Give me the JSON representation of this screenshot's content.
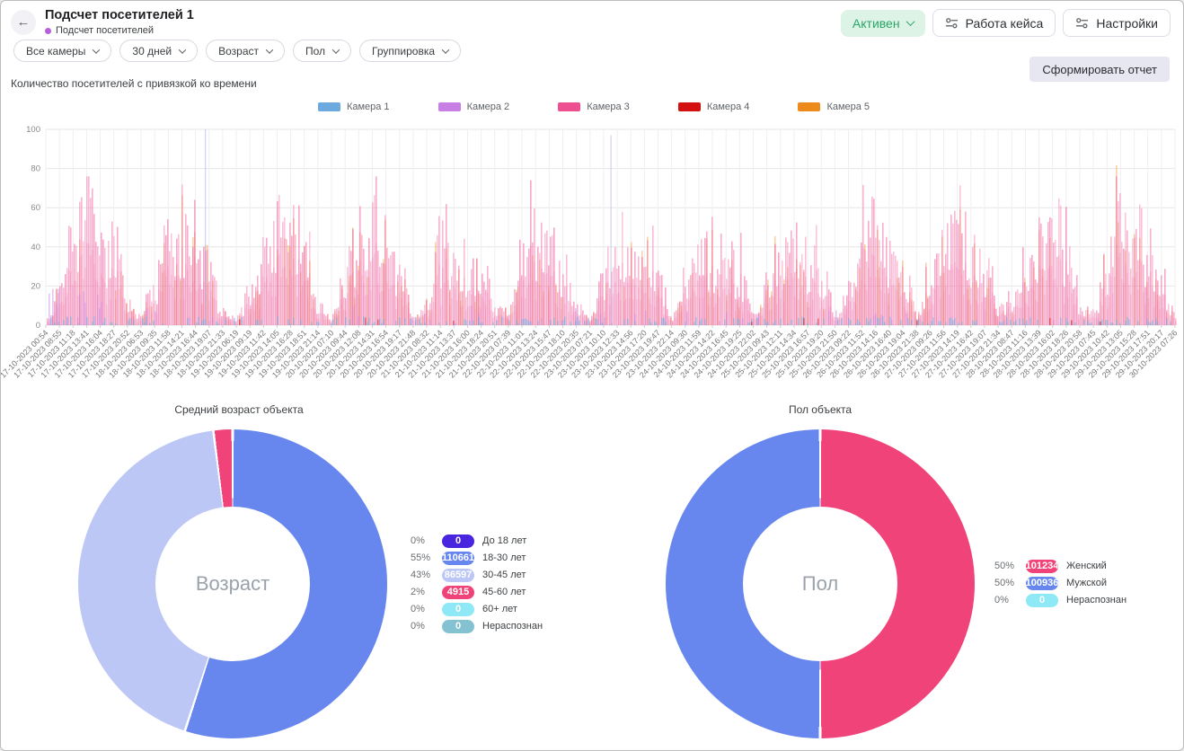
{
  "header": {
    "title": "Подсчет посетителей 1",
    "subtitle": "Подсчет посетителей",
    "status_label": "Активен",
    "case_button_label": "Работа кейса",
    "settings_button_label": "Настройки"
  },
  "filters": {
    "items": [
      {
        "label": "Все камеры"
      },
      {
        "label": "30 дней"
      },
      {
        "label": "Возраст"
      },
      {
        "label": "Пол"
      },
      {
        "label": "Группировка"
      }
    ]
  },
  "report_button_label": "Сформировать отчет",
  "chart_data": [
    {
      "type": "bar",
      "title": "Количество посетителей с привязкой ко времени",
      "ylim": [
        0,
        100
      ],
      "yticks": [
        0,
        20,
        40,
        60,
        80,
        100
      ],
      "grid": true,
      "legend_position": "top",
      "series": [
        {
          "name": "Камера 1",
          "color": "#6BA9DE"
        },
        {
          "name": "Камера 2",
          "color": "#C77FE3"
        },
        {
          "name": "Камера 3",
          "color": "#ED4F90"
        },
        {
          "name": "Камера 4",
          "color": "#D21010"
        },
        {
          "name": "Камера 5",
          "color": "#EC8A1C"
        }
      ],
      "x": [
        "17-10-2023 00:54",
        "17-10-2023 08:55",
        "17-10-2023 11:18",
        "17-10-2023 13:41",
        "17-10-2023 16:04",
        "17-10-2023 18:27",
        "17-10-2023 20:52",
        "18-10-2023 06:53",
        "18-10-2023 09:35",
        "18-10-2023 11:58",
        "18-10-2023 14:21",
        "18-10-2023 16:44",
        "18-10-2023 19:07",
        "18-10-2023 21:33",
        "19-10-2023 06:19",
        "19-10-2023 09:19",
        "19-10-2023 11:42",
        "19-10-2023 14:05",
        "19-10-2023 16:28",
        "19-10-2023 18:51",
        "19-10-2023 21:14",
        "20-10-2023 07:10",
        "20-10-2023 09:44",
        "20-10-2023 12:08",
        "20-10-2023 14:31",
        "20-10-2023 16:54",
        "20-10-2023 19:17",
        "20-10-2023 21:48",
        "21-10-2023 08:32",
        "21-10-2023 11:14",
        "21-10-2023 13:37",
        "21-10-2023 16:00",
        "21-10-2023 18:24",
        "21-10-2023 20:51",
        "22-10-2023 07:39",
        "22-10-2023 11:01",
        "22-10-2023 13:24",
        "22-10-2023 15:47",
        "22-10-2023 18:10",
        "22-10-2023 20:35",
        "23-10-2023 07:21",
        "23-10-2023 10:10",
        "23-10-2023 12:33",
        "23-10-2023 14:56",
        "23-10-2023 17:20",
        "23-10-2023 19:47",
        "23-10-2023 22:14",
        "24-10-2023 09:30",
        "24-10-2023 11:59",
        "24-10-2023 14:22",
        "24-10-2023 16:45",
        "24-10-2023 19:25",
        "24-10-2023 22:02",
        "25-10-2023 09:43",
        "25-10-2023 12:11",
        "25-10-2023 14:34",
        "25-10-2023 16:57",
        "25-10-2023 19:20",
        "25-10-2023 21:50",
        "26-10-2023 09:22",
        "26-10-2023 11:52",
        "26-10-2023 14:16",
        "26-10-2023 16:40",
        "26-10-2023 19:04",
        "26-10-2023 21:38",
        "27-10-2023 09:26",
        "27-10-2023 11:56",
        "27-10-2023 14:19",
        "27-10-2023 16:42",
        "27-10-2023 19:07",
        "27-10-2023 21:34",
        "28-10-2023 08:47",
        "28-10-2023 11:16",
        "28-10-2023 13:39",
        "28-10-2023 16:02",
        "28-10-2023 18:26",
        "28-10-2023 20:58",
        "29-10-2023 07:45",
        "29-10-2023 10:42",
        "29-10-2023 13:05",
        "29-10-2023 15:28",
        "29-10-2023 17:51",
        "29-10-2023 20:17",
        "30-10-2023 07:26"
      ],
      "envelope": [
        4,
        18,
        45,
        75,
        42,
        48,
        14,
        5,
        25,
        48,
        52,
        42,
        30,
        8,
        4,
        20,
        40,
        57,
        45,
        50,
        12,
        5,
        30,
        55,
        69,
        48,
        30,
        10,
        12,
        49,
        44,
        35,
        42,
        10,
        8,
        40,
        52,
        45,
        35,
        10,
        5,
        30,
        48,
        44,
        40,
        28,
        5,
        20,
        40,
        42,
        44,
        30,
        5,
        25,
        42,
        45,
        40,
        30,
        8,
        22,
        45,
        50,
        45,
        35,
        8,
        28,
        46,
        52,
        45,
        35,
        10,
        18,
        40,
        55,
        60,
        45,
        12,
        10,
        35,
        58,
        62,
        45,
        20,
        5
      ]
    },
    {
      "type": "pie",
      "title": "Средний возраст объекта",
      "center_label": "Возраст",
      "slices": [
        {
          "label": "До 18 лет",
          "percent": "0%",
          "count": "0",
          "value": 0,
          "color": "#4A25E0"
        },
        {
          "label": "18-30 лет",
          "percent": "55%",
          "count": "110661",
          "value": 55,
          "color": "#6787EE"
        },
        {
          "label": "30-45 лет",
          "percent": "43%",
          "count": "86597",
          "value": 43,
          "color": "#BCC7F6"
        },
        {
          "label": "45-60 лет",
          "percent": "2%",
          "count": "4915",
          "value": 2,
          "color": "#F0437A"
        },
        {
          "label": "60+ лет",
          "percent": "0%",
          "count": "0",
          "value": 0,
          "color": "#8FE8F6"
        },
        {
          "label": "Нераспознан",
          "percent": "0%",
          "count": "0",
          "value": 0,
          "color": "#85C2D1"
        }
      ]
    },
    {
      "type": "pie",
      "title": "Пол объекта",
      "center_label": "Пол",
      "slices": [
        {
          "label": "Женский",
          "percent": "50%",
          "count": "101234",
          "value": 50,
          "color": "#F0437A"
        },
        {
          "label": "Мужской",
          "percent": "50%",
          "count": "100936",
          "value": 50,
          "color": "#6787EE"
        },
        {
          "label": "Нераспознан",
          "percent": "0%",
          "count": "0",
          "value": 0,
          "color": "#8FE8F6"
        }
      ]
    }
  ]
}
